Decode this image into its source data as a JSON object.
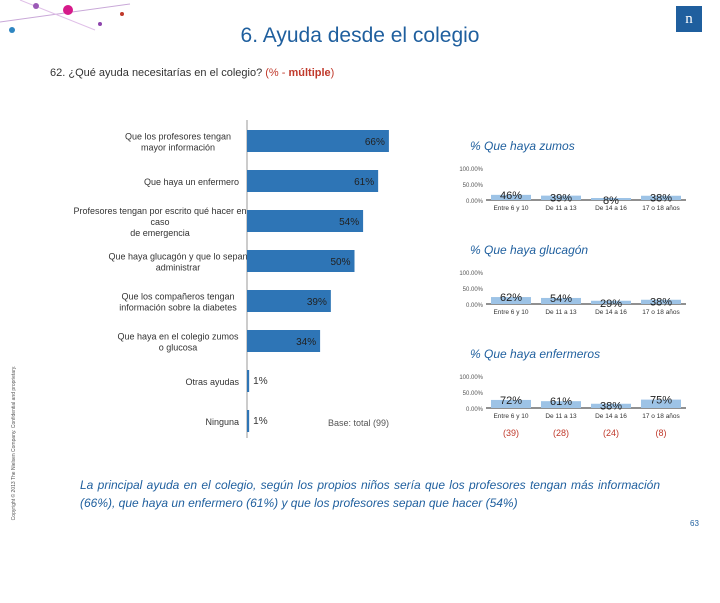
{
  "page": {
    "title": "6. Ayuda desde el colegio",
    "logo_text": "n",
    "question": "62. ¿Qué ayuda necesitarías en el colegio?",
    "question_note_open": "(% - ",
    "question_note_bold": "múltiple",
    "question_note_close": ")",
    "copyright": "Copyright © 2013 The Nielsen Company. Confidential and proprietary.",
    "base": "Base: total (99)",
    "conclusion": "La principal ayuda en el colegio, según los propios niños sería que los profesores tengan más información (66%), que haya un enfermero (61%) y que los profesores sepan que hacer (54%)",
    "page_number": "63"
  },
  "chart_data": [
    {
      "type": "bar",
      "orientation": "horizontal",
      "categories": [
        "Que los profesores tengan mayor información",
        "Que haya un enfermero",
        "Profesores tengan por escrito qué hacer en caso de emergencia",
        "Que haya glucagón y que lo sepan administrar",
        "Que los compañeros tengan información sobre la diabetes",
        "Que haya en el colegio zumos o glucosa",
        "Otras ayudas",
        "Ninguna"
      ],
      "values": [
        66,
        61,
        54,
        50,
        39,
        34,
        1,
        1
      ],
      "value_labels": [
        "66%",
        "61%",
        "54%",
        "50%",
        "39%",
        "34%",
        "1%",
        "1%"
      ],
      "xlim": [
        0,
        100
      ]
    },
    {
      "type": "bar",
      "title": "% Que haya zumos",
      "categories": [
        "Entre 6 y 10",
        "De 11 a 13",
        "De 14 a 16",
        "17 o 18 años"
      ],
      "values": [
        46,
        39,
        8,
        38
      ],
      "value_labels": [
        "46%",
        "39%",
        "8%",
        "38%"
      ],
      "yticks": [
        "100.00%",
        "50.00%",
        "0.00%"
      ],
      "ylim": [
        0,
        100
      ]
    },
    {
      "type": "bar",
      "title": "% Que haya glucagón",
      "categories": [
        "Entre 6 y 10",
        "De 11 a 13",
        "De 14 a 16",
        "17 o 18 años"
      ],
      "values": [
        62,
        54,
        29,
        38
      ],
      "value_labels": [
        "62%",
        "54%",
        "29%",
        "38%"
      ],
      "yticks": [
        "100.00%",
        "50.00%",
        "0.00%"
      ],
      "ylim": [
        0,
        100
      ]
    },
    {
      "type": "bar",
      "title": "% Que haya enfermeros",
      "categories": [
        "Entre 6 y 10",
        "De 11 a 13",
        "De 14 a 16",
        "17 o 18 años"
      ],
      "values": [
        72,
        61,
        38,
        75
      ],
      "value_labels": [
        "72%",
        "61%",
        "38%",
        "75%"
      ],
      "yticks": [
        "100.00%",
        "50.00%",
        "0.00%"
      ],
      "ylim": [
        0,
        100
      ],
      "bases": [
        "(39)",
        "(28)",
        "(24)",
        "(8)"
      ]
    }
  ]
}
